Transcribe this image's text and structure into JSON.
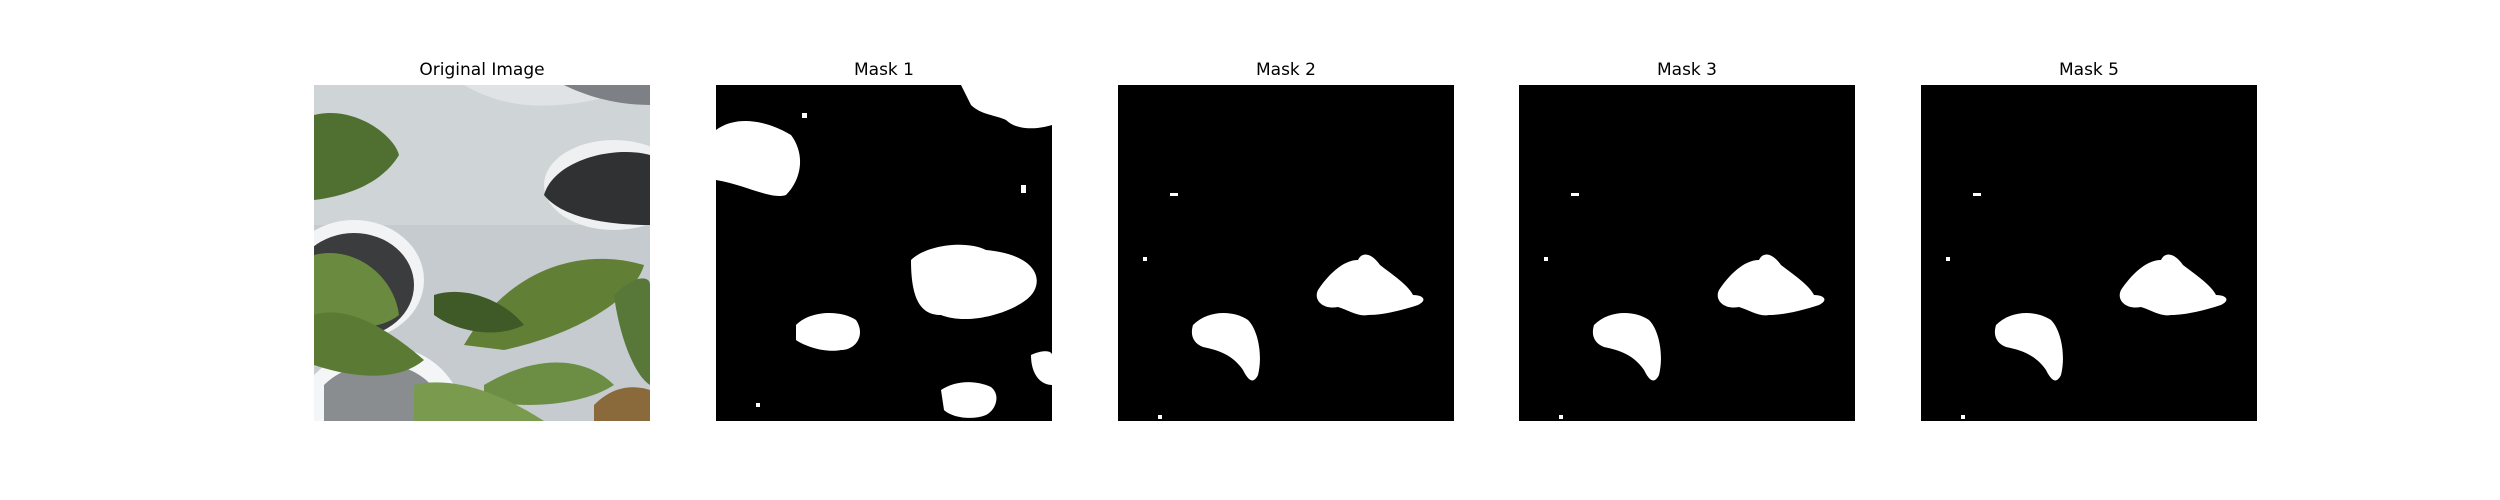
{
  "panels": [
    {
      "title": "Original Image"
    },
    {
      "title": "Mask 1"
    },
    {
      "title": "Mask 2"
    },
    {
      "title": "Mask 3"
    },
    {
      "title": "Mask 5"
    }
  ],
  "colors": {
    "background": "#ffffff",
    "mask_background": "#000000",
    "mask_foreground": "#ffffff",
    "leaf_green": "#5f7f3a",
    "pot_gray": "#c2c8cc"
  }
}
